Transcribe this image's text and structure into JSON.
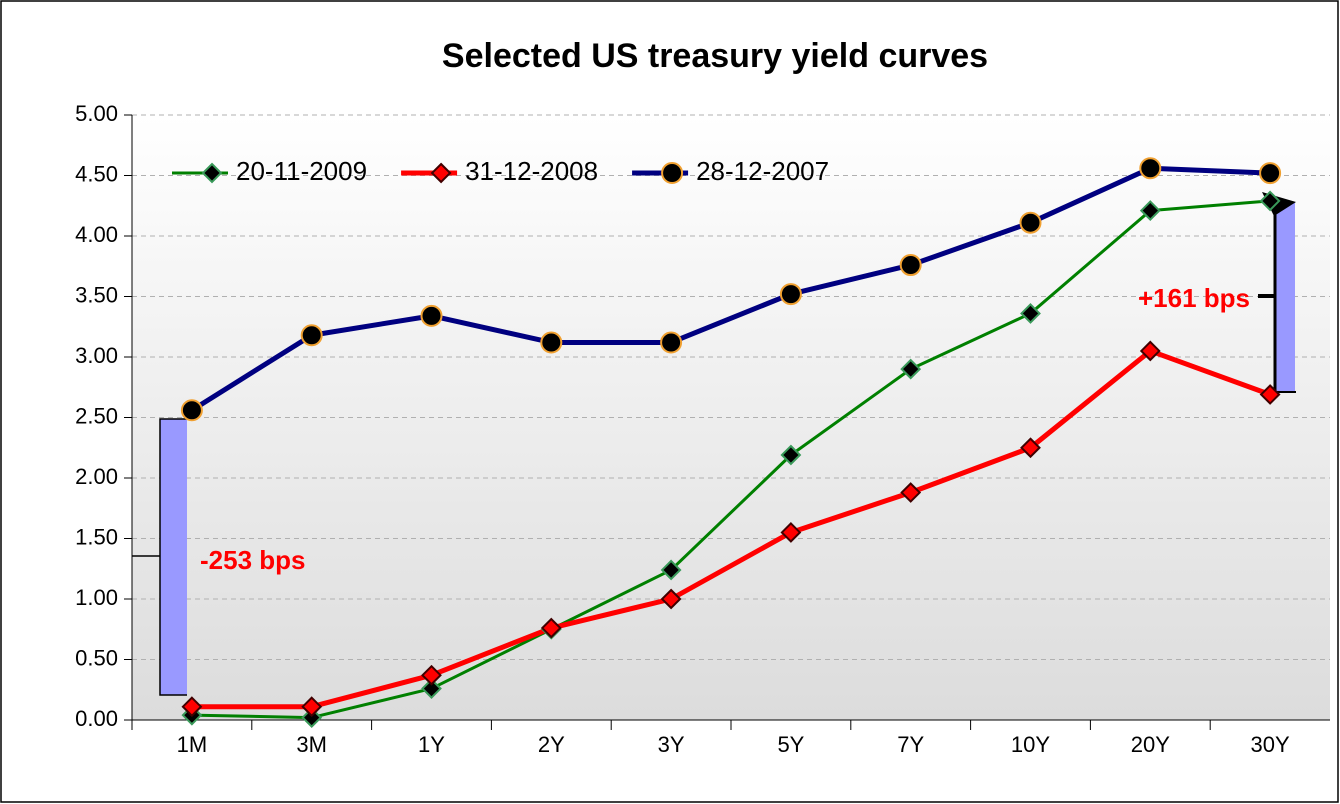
{
  "chart_data": {
    "type": "line",
    "title": "Selected US treasury yield curves",
    "categories": [
      "1M",
      "3M",
      "1Y",
      "2Y",
      "3Y",
      "5Y",
      "7Y",
      "10Y",
      "20Y",
      "30Y"
    ],
    "series": [
      {
        "name": "20-11-2009",
        "color": "#008000",
        "marker": "diamond",
        "marker_fill": "#000000",
        "marker_edge": "#3a9a5a",
        "values": [
          0.04,
          0.02,
          0.26,
          0.75,
          1.24,
          2.19,
          2.9,
          3.36,
          4.21,
          4.29
        ]
      },
      {
        "name": "31-12-2008",
        "color": "#ff0000",
        "marker": "diamond",
        "marker_fill": "#ff0000",
        "marker_edge": "#400000",
        "values": [
          0.11,
          0.11,
          0.37,
          0.76,
          1.0,
          1.55,
          1.88,
          2.25,
          3.05,
          2.69
        ]
      },
      {
        "name": "28-12-2007",
        "color": "#000080",
        "marker": "circle",
        "marker_fill": "#000000",
        "marker_edge": "#f0a030",
        "values": [
          2.56,
          3.18,
          3.34,
          3.12,
          3.12,
          3.52,
          3.76,
          4.11,
          4.56,
          4.52
        ]
      }
    ],
    "ylim": [
      0,
      5
    ],
    "yticks": [
      {
        "value": 0,
        "label": "0.00"
      },
      {
        "value": 0.5,
        "label": "0.50"
      },
      {
        "value": 1,
        "label": "1.00"
      },
      {
        "value": 1.5,
        "label": "1.50"
      },
      {
        "value": 2,
        "label": "2.00"
      },
      {
        "value": 2.5,
        "label": "2.50"
      },
      {
        "value": 3,
        "label": "3.00"
      },
      {
        "value": 3.5,
        "label": "3.50"
      },
      {
        "value": 4,
        "label": "4.00"
      },
      {
        "value": 4.5,
        "label": "4.50"
      },
      {
        "value": 5,
        "label": "5.00"
      }
    ],
    "grid": true,
    "legend": "top-left",
    "annotations": [
      "-253 bps",
      "+161 bps"
    ]
  }
}
